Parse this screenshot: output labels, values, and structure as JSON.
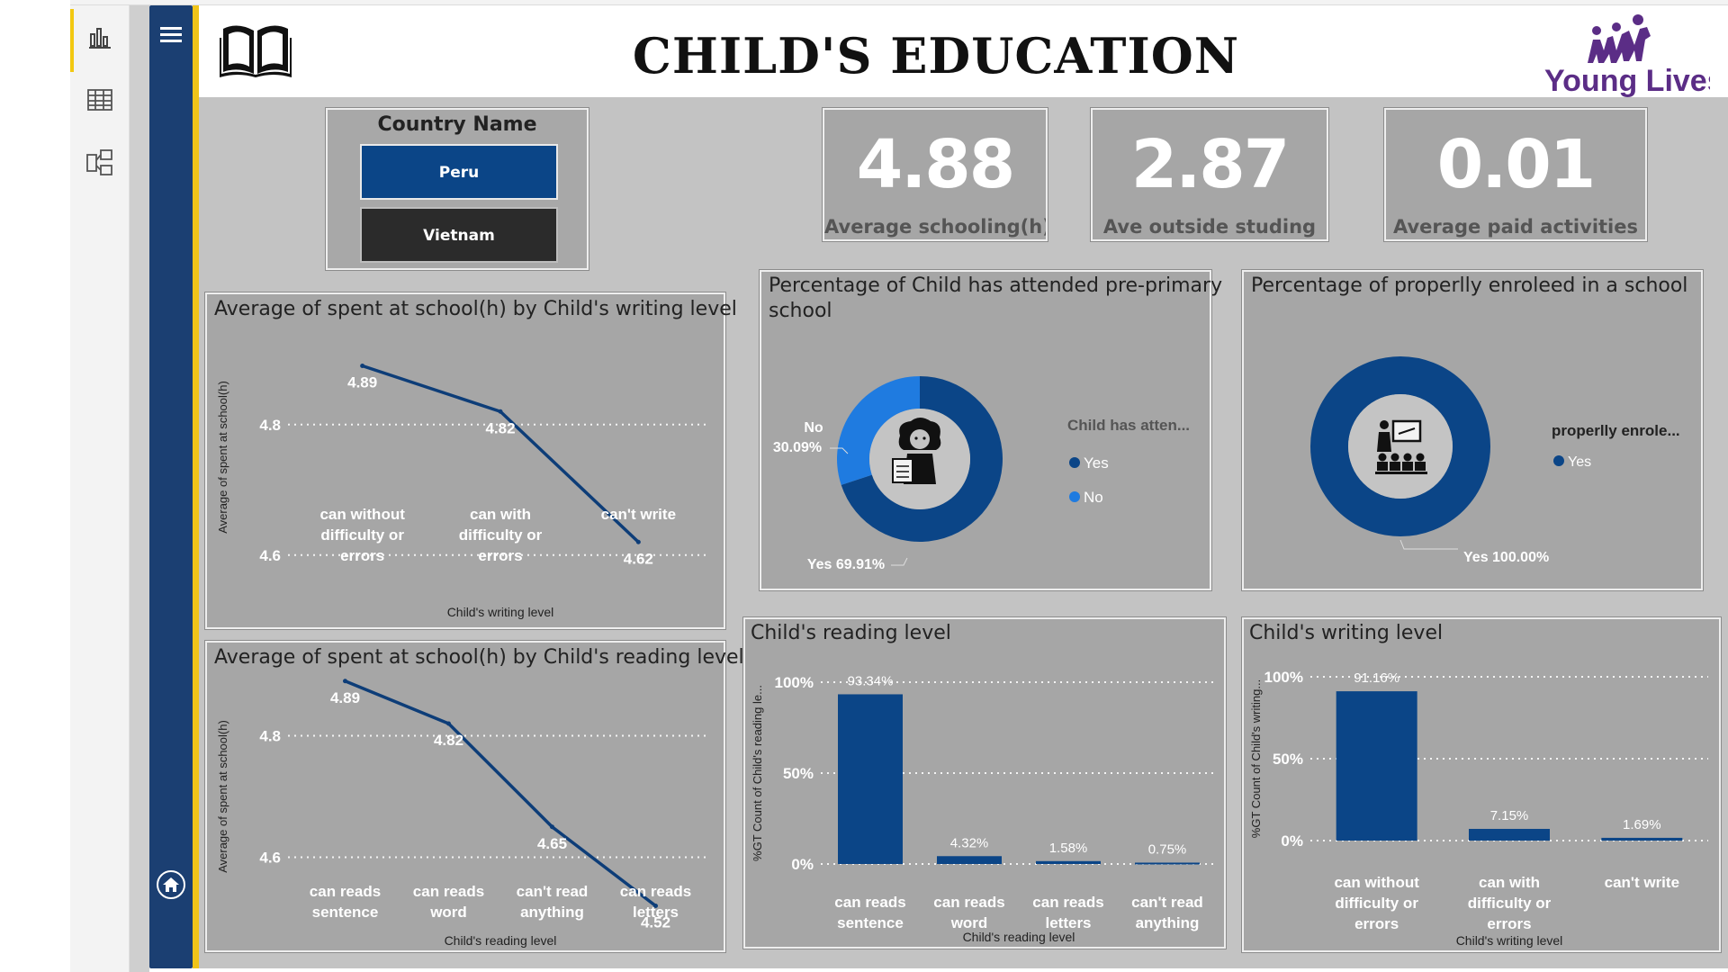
{
  "header": {
    "title": "CHILD'S EDUCATION",
    "logo_text": "Young Lives"
  },
  "colors": {
    "nav": "#1b3f72",
    "accent": "#f0c419",
    "dark_blue": "#0b4587",
    "light_blue": "#1f7be0",
    "card": "#a6a6a6"
  },
  "rail_icons": [
    "report-view-icon",
    "table-view-icon",
    "model-view-icon"
  ],
  "slicer": {
    "title": "Country Name",
    "options": [
      {
        "label": "Peru",
        "selected": true
      },
      {
        "label": "Vietnam",
        "selected": false
      }
    ]
  },
  "kpis": [
    {
      "value": "4.88",
      "label": "Average schooling(h)"
    },
    {
      "value": "2.87",
      "label": "Ave outside studing"
    },
    {
      "value": "0.01",
      "label": "Average paid activities"
    }
  ],
  "charts": {
    "writing_line": {
      "title": "Average of spent at school(h) by Child's writing level",
      "ylabel": "Average of spent at school(h)",
      "xlabel": "Child's writing level",
      "yticks": [
        "4.8",
        "4.6"
      ],
      "points": [
        {
          "cat": [
            "can without",
            "difficulty or",
            "errors"
          ],
          "label": "4.89"
        },
        {
          "cat": [
            "can with",
            "difficulty or",
            "errors"
          ],
          "label": "4.82"
        },
        {
          "cat": [
            "can't write"
          ],
          "label": "4.62"
        }
      ]
    },
    "reading_line": {
      "title": "Average of spent at school(h) by Child's reading level",
      "ylabel": "Average of spent at school(h)",
      "xlabel": "Child's reading level",
      "yticks": [
        "4.8",
        "4.6"
      ],
      "points": [
        {
          "cat": [
            "can reads",
            "sentence"
          ],
          "label": "4.89"
        },
        {
          "cat": [
            "can reads",
            "word"
          ],
          "label": "4.82"
        },
        {
          "cat": [
            "can't read",
            "anything"
          ],
          "label": "4.65"
        },
        {
          "cat": [
            "can reads",
            "letters"
          ],
          "label": "4.52"
        }
      ]
    },
    "preprimary_donut": {
      "title": "Percentage of Child has attended pre-primary school",
      "title_lines": [
        "Percentage of Child has attended pre-primary",
        "school"
      ],
      "legend_title": "Child has atten...",
      "legend": [
        "Yes",
        "No"
      ],
      "label_no": [
        "No",
        "30.09%"
      ],
      "label_yes": "Yes 69.91%"
    },
    "enrolled_donut": {
      "title": "Percentage of properlly enroleed in a school",
      "legend_title": "properlly enrole...",
      "legend": [
        "Yes"
      ],
      "label_yes": "Yes 100.00%"
    },
    "reading_bar": {
      "title": "Child's reading level",
      "ylabel": "%GT Count of Child's reading le...",
      "xlabel": "Child's reading level",
      "yticks": [
        "100%",
        "50%",
        "0%"
      ],
      "bars": [
        {
          "cat": [
            "can reads",
            "sentence"
          ],
          "label": "93.34%"
        },
        {
          "cat": [
            "can reads",
            "word"
          ],
          "label": "4.32%"
        },
        {
          "cat": [
            "can reads",
            "letters"
          ],
          "label": "1.58%"
        },
        {
          "cat": [
            "can't read",
            "anything"
          ],
          "label": "0.75%"
        }
      ]
    },
    "writing_bar": {
      "title": "Child's writing level",
      "ylabel": "%GT Count of Child's writing...",
      "xlabel": "Child's writing level",
      "yticks": [
        "100%",
        "50%",
        "0%"
      ],
      "bars": [
        {
          "cat": [
            "can without",
            "difficulty or",
            "errors"
          ],
          "label": "91.16%"
        },
        {
          "cat": [
            "can with",
            "difficulty or",
            "errors"
          ],
          "label": "7.15%"
        },
        {
          "cat": [
            "can't write"
          ],
          "label": "1.69%"
        }
      ]
    }
  },
  "chart_data": [
    {
      "type": "line",
      "title": "Average of spent at school(h) by Child's writing level",
      "xlabel": "Child's writing level",
      "ylabel": "Average of spent at school(h)",
      "categories": [
        "can without difficulty or errors",
        "can with difficulty or errors",
        "can't write"
      ],
      "values": [
        4.89,
        4.82,
        4.62
      ],
      "ylim": [
        4.55,
        4.95
      ],
      "grid": true
    },
    {
      "type": "line",
      "title": "Average of spent at school(h) by Child's reading level",
      "xlabel": "Child's reading level",
      "ylabel": "Average of spent at school(h)",
      "categories": [
        "can reads sentence",
        "can reads word",
        "can't read anything",
        "can reads letters"
      ],
      "values": [
        4.89,
        4.82,
        4.65,
        4.52
      ],
      "ylim": [
        4.5,
        4.9
      ],
      "grid": true
    },
    {
      "type": "pie",
      "title": "Percentage of Child has attended pre-primary school",
      "categories": [
        "Yes",
        "No"
      ],
      "values": [
        69.91,
        30.09
      ],
      "legend": "right"
    },
    {
      "type": "pie",
      "title": "Percentage of properlly enroleed in a school",
      "categories": [
        "Yes"
      ],
      "values": [
        100.0
      ],
      "legend": "right"
    },
    {
      "type": "bar",
      "title": "Child's reading level",
      "xlabel": "Child's reading level",
      "ylabel": "%GT Count of Child's reading le...",
      "categories": [
        "can reads sentence",
        "can reads word",
        "can reads letters",
        "can't read anything"
      ],
      "values": [
        93.34,
        4.32,
        1.58,
        0.75
      ],
      "ylim": [
        0,
        100
      ],
      "grid": true
    },
    {
      "type": "bar",
      "title": "Child's writing level",
      "xlabel": "Child's writing level",
      "ylabel": "%GT Count of Child's writing...",
      "categories": [
        "can without difficulty or errors",
        "can with difficulty or errors",
        "can't write"
      ],
      "values": [
        91.16,
        7.15,
        1.69
      ],
      "ylim": [
        0,
        100
      ],
      "grid": true
    }
  ]
}
